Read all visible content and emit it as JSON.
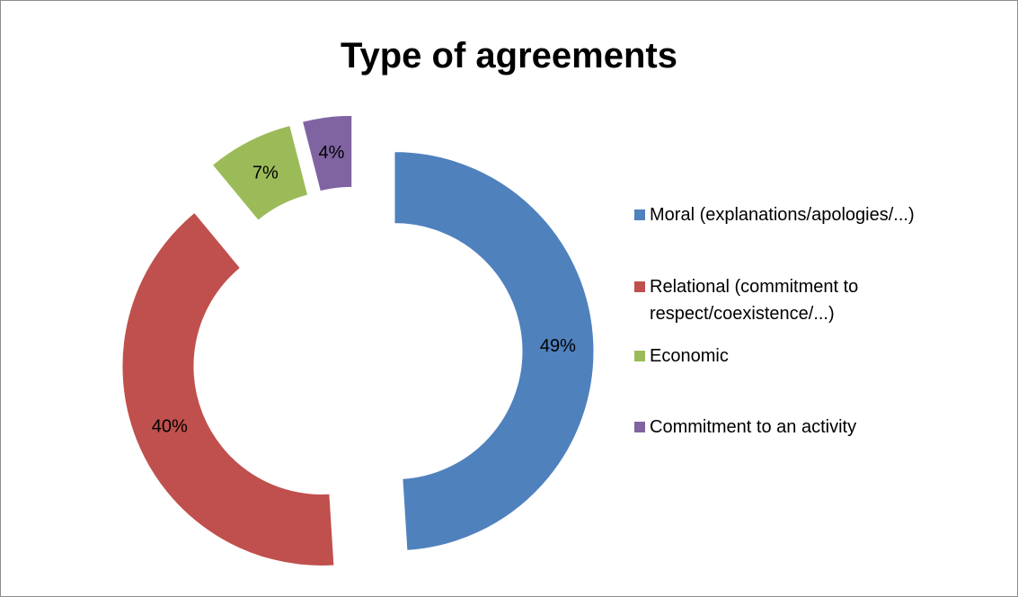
{
  "chart_data": {
    "type": "pie",
    "title": "Type of agreements",
    "categories": [
      "Moral (explanations/apologies/...)",
      "Relational (commitment to respect/coexistence/...)",
      "Economic",
      "Commitment to an activity"
    ],
    "values": [
      49,
      40,
      7,
      4
    ],
    "data_labels": [
      "49%",
      "40%",
      "7%",
      "4%"
    ],
    "colors": [
      "#4f81bd",
      "#c0504d",
      "#9bbb59",
      "#8064a2"
    ],
    "donut": true,
    "exploded": true,
    "legend_position": "right"
  }
}
